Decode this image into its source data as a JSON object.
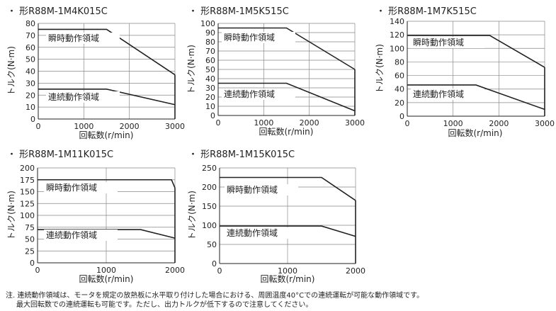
{
  "chart_data": [
    {
      "type": "area",
      "title": "・ 形R88M-1M4K015C",
      "xlabel": "回転数(r/min)",
      "ylabel": "トルク(N·m)",
      "xlim": [
        0,
        3000
      ],
      "ylim": [
        0,
        80
      ],
      "xticks": [
        0,
        1000,
        2000,
        3000
      ],
      "yticks": [
        0,
        10,
        20,
        30,
        40,
        50,
        60,
        70,
        80
      ],
      "series": [
        {
          "name": "瞬時動作領域",
          "x": [
            0,
            1500,
            3000
          ],
          "y": [
            75,
            75,
            37
          ]
        },
        {
          "name": "連続動作領域",
          "x": [
            0,
            1500,
            3000
          ],
          "y": [
            25,
            25,
            12
          ]
        }
      ]
    },
    {
      "type": "area",
      "title": "・ 形R88M-1M5K515C",
      "xlabel": "回転数(r/min)",
      "ylabel": "トルク(N·m)",
      "xlim": [
        0,
        3000
      ],
      "ylim": [
        0,
        100
      ],
      "xticks": [
        0,
        1000,
        2000,
        3000
      ],
      "yticks": [
        0,
        10,
        20,
        30,
        40,
        50,
        60,
        70,
        80,
        90,
        100
      ],
      "series": [
        {
          "name": "瞬時動作領域",
          "x": [
            0,
            1500,
            3000
          ],
          "y": [
            95,
            95,
            50
          ]
        },
        {
          "name": "連続動作領域",
          "x": [
            0,
            1500,
            3000
          ],
          "y": [
            35,
            35,
            5
          ]
        }
      ]
    },
    {
      "type": "area",
      "title": "・ 形R88M-1M7K515C",
      "xlabel": "回転数(r/min)",
      "ylabel": "トルク(N·m)",
      "xlim": [
        0,
        3000
      ],
      "ylim": [
        0,
        140
      ],
      "xticks": [
        0,
        1000,
        2000,
        3000
      ],
      "yticks": [
        0,
        20,
        40,
        60,
        80,
        100,
        120,
        140
      ],
      "series": [
        {
          "name": "瞬時動作領域",
          "x": [
            0,
            1800,
            3000
          ],
          "y": [
            119,
            119,
            72
          ]
        },
        {
          "name": "連続動作領域",
          "x": [
            0,
            1500,
            3000
          ],
          "y": [
            46,
            46,
            10
          ]
        }
      ]
    },
    {
      "type": "area",
      "title": "・ 形R88M-1M11K015C",
      "xlabel": "回転数(r/min)",
      "ylabel": "トルク(N·m)",
      "xlim": [
        0,
        2000
      ],
      "ylim": [
        0,
        200
      ],
      "xticks": [
        0,
        1000,
        2000
      ],
      "yticks": [
        0,
        25,
        50,
        75,
        100,
        125,
        150,
        175,
        200
      ],
      "series": [
        {
          "name": "瞬時動作領域",
          "x": [
            0,
            1950,
            2000
          ],
          "y": [
            175,
            175,
            158
          ]
        },
        {
          "name": "連続動作領域",
          "x": [
            0,
            1500,
            2000
          ],
          "y": [
            70,
            70,
            52
          ]
        }
      ]
    },
    {
      "type": "area",
      "title": "・ 形R88M-1M15K015C",
      "xlabel": "回転数(r/min)",
      "ylabel": "トルク(N·m)",
      "xlim": [
        0,
        2000
      ],
      "ylim": [
        0,
        250
      ],
      "xticks": [
        0,
        1000,
        2000
      ],
      "yticks": [
        0,
        50,
        100,
        150,
        200,
        250
      ],
      "series": [
        {
          "name": "瞬時動作領域",
          "x": [
            0,
            1500,
            2000
          ],
          "y": [
            225,
            225,
            165
          ]
        },
        {
          "name": "連続動作領域",
          "x": [
            0,
            1500,
            2000
          ],
          "y": [
            98,
            98,
            71
          ]
        }
      ]
    }
  ],
  "notes": {
    "line1": "注. 連続動作領域は、モータを規定の放熱板に水平取り付けした場合における、周囲温度40°Cでの連続運転が可能な動作領域です。",
    "line2": "最大回転数での連続運転も可能です。ただし、出力トルクが低下するので注意してください。"
  },
  "colors": {
    "line": "#222222",
    "grid": "#888888",
    "text": "#222222"
  }
}
